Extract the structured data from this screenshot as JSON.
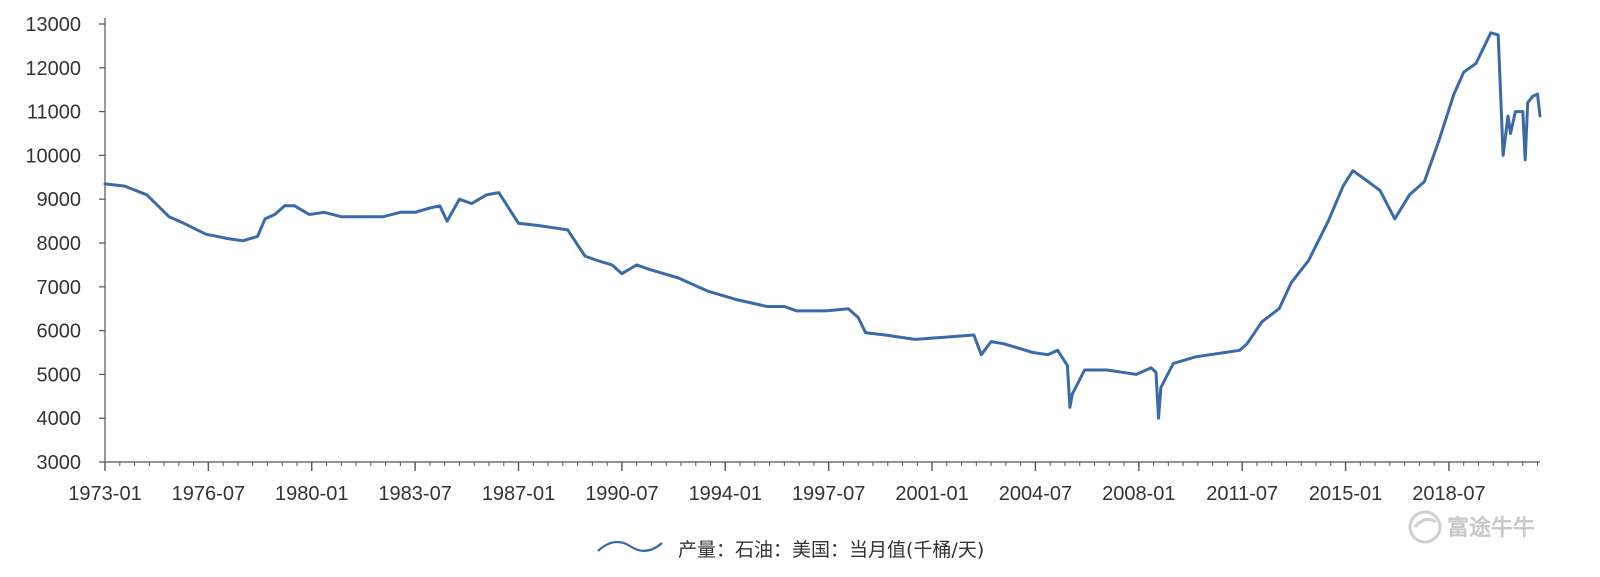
{
  "chart_data": {
    "type": "line",
    "title": "",
    "xlabel": "",
    "ylabel": "",
    "ylim": [
      3000,
      13000
    ],
    "yticks": [
      "3000",
      "4000",
      "5000",
      "6000",
      "7000",
      "8000",
      "9000",
      "10000",
      "11000",
      "12000",
      "13000"
    ],
    "xticks": [
      "1973-01",
      "1976-07",
      "1980-01",
      "1983-07",
      "1987-01",
      "1990-07",
      "1994-01",
      "1997-07",
      "2001-01",
      "2004-07",
      "2008-01",
      "2011-07",
      "2015-01",
      "2018-07"
    ],
    "xlim": [
      "1973-01",
      "2021-08"
    ],
    "grid": false,
    "legend_position": "bottom",
    "line_color": "#3a6aa8",
    "series": [
      {
        "name": "产量：石油：美国：当月值(千桶/天)",
        "points": [
          [
            "1973-01",
            9350
          ],
          [
            "1973-09",
            9300
          ],
          [
            "1974-06",
            9100
          ],
          [
            "1975-03",
            8600
          ],
          [
            "1975-09",
            8450
          ],
          [
            "1976-06",
            8200
          ],
          [
            "1977-03",
            8100
          ],
          [
            "1977-09",
            8050
          ],
          [
            "1978-03",
            8150
          ],
          [
            "1978-06",
            8550
          ],
          [
            "1978-10",
            8650
          ],
          [
            "1979-02",
            8850
          ],
          [
            "1979-06",
            8850
          ],
          [
            "1979-12",
            8650
          ],
          [
            "1980-06",
            8700
          ],
          [
            "1981-01",
            8600
          ],
          [
            "1981-08",
            8600
          ],
          [
            "1982-06",
            8600
          ],
          [
            "1983-01",
            8700
          ],
          [
            "1983-07",
            8700
          ],
          [
            "1984-01",
            8800
          ],
          [
            "1984-05",
            8850
          ],
          [
            "1984-08",
            8500
          ],
          [
            "1985-01",
            9000
          ],
          [
            "1985-06",
            8900
          ],
          [
            "1985-12",
            9100
          ],
          [
            "1986-05",
            9150
          ],
          [
            "1986-09",
            8800
          ],
          [
            "1987-01",
            8450
          ],
          [
            "1987-09",
            8400
          ],
          [
            "1988-03",
            8350
          ],
          [
            "1988-09",
            8300
          ],
          [
            "1989-04",
            7700
          ],
          [
            "1989-09",
            7600
          ],
          [
            "1990-03",
            7500
          ],
          [
            "1990-07",
            7300
          ],
          [
            "1991-01",
            7500
          ],
          [
            "1991-06",
            7400
          ],
          [
            "1992-06",
            7200
          ],
          [
            "1993-06",
            6900
          ],
          [
            "1994-06",
            6700
          ],
          [
            "1995-06",
            6550
          ],
          [
            "1996-01",
            6550
          ],
          [
            "1996-06",
            6450
          ],
          [
            "1997-06",
            6450
          ],
          [
            "1998-03",
            6500
          ],
          [
            "1998-07",
            6300
          ],
          [
            "1998-10",
            5950
          ],
          [
            "1999-06",
            5900
          ],
          [
            "2000-06",
            5800
          ],
          [
            "2001-06",
            5850
          ],
          [
            "2002-06",
            5900
          ],
          [
            "2002-09",
            5450
          ],
          [
            "2003-01",
            5750
          ],
          [
            "2003-06",
            5700
          ],
          [
            "2004-06",
            5500
          ],
          [
            "2004-12",
            5450
          ],
          [
            "2005-04",
            5550
          ],
          [
            "2005-08",
            5200
          ],
          [
            "2005-09",
            4250
          ],
          [
            "2005-10",
            4550
          ],
          [
            "2006-03",
            5100
          ],
          [
            "2006-12",
            5100
          ],
          [
            "2007-06",
            5050
          ],
          [
            "2007-12",
            5000
          ],
          [
            "2008-06",
            5150
          ],
          [
            "2008-08",
            5050
          ],
          [
            "2008-09",
            4000
          ],
          [
            "2008-10",
            4700
          ],
          [
            "2009-03",
            5250
          ],
          [
            "2009-12",
            5400
          ],
          [
            "2010-06",
            5450
          ],
          [
            "2010-12",
            5500
          ],
          [
            "2011-06",
            5550
          ],
          [
            "2011-09",
            5700
          ],
          [
            "2012-03",
            6200
          ],
          [
            "2012-10",
            6500
          ],
          [
            "2013-03",
            7100
          ],
          [
            "2013-10",
            7600
          ],
          [
            "2014-06",
            8500
          ],
          [
            "2014-12",
            9300
          ],
          [
            "2015-04",
            9650
          ],
          [
            "2015-09",
            9450
          ],
          [
            "2016-03",
            9200
          ],
          [
            "2016-09",
            8550
          ],
          [
            "2017-03",
            9100
          ],
          [
            "2017-09",
            9400
          ],
          [
            "2018-03",
            10350
          ],
          [
            "2018-09",
            11400
          ],
          [
            "2019-01",
            11900
          ],
          [
            "2019-06",
            12100
          ],
          [
            "2019-12",
            12800
          ],
          [
            "2020-03",
            12750
          ],
          [
            "2020-05",
            10000
          ],
          [
            "2020-07",
            10900
          ],
          [
            "2020-08",
            10500
          ],
          [
            "2020-10",
            11000
          ],
          [
            "2021-01",
            11000
          ],
          [
            "2021-02",
            9900
          ],
          [
            "2021-03",
            11200
          ],
          [
            "2021-05",
            11350
          ],
          [
            "2021-07",
            11400
          ],
          [
            "2021-08",
            10900
          ]
        ]
      }
    ]
  },
  "watermark": {
    "text": "富途牛牛"
  }
}
